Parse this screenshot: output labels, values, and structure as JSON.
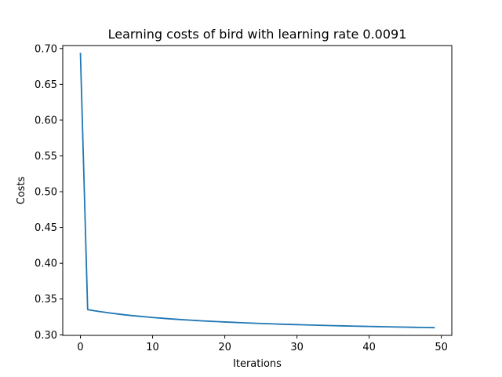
{
  "chart_data": {
    "type": "line",
    "title": "Learning costs of bird with learning rate 0.0091",
    "xlabel": "Iterations",
    "ylabel": "Costs",
    "xlim": [
      -2.45,
      51.45
    ],
    "ylim": [
      0.2992,
      0.7042
    ],
    "x_ticks": [
      0,
      10,
      20,
      30,
      40,
      50
    ],
    "x_tick_labels": [
      "0",
      "10",
      "20",
      "30",
      "40",
      "50"
    ],
    "y_ticks": [
      0.3,
      0.35,
      0.4,
      0.45,
      0.5,
      0.55,
      0.6,
      0.65,
      0.7
    ],
    "y_tick_labels": [
      "0.30",
      "0.35",
      "0.40",
      "0.45",
      "0.50",
      "0.55",
      "0.60",
      "0.65",
      "0.70"
    ],
    "grid": false,
    "colors": {
      "line": "#1f77b4"
    },
    "series": [
      {
        "x": [
          0,
          1,
          2,
          3,
          4,
          5,
          6,
          7,
          8,
          9,
          10,
          11,
          12,
          13,
          14,
          15,
          16,
          17,
          18,
          19,
          20,
          21,
          22,
          23,
          24,
          25,
          26,
          27,
          28,
          29,
          30,
          31,
          32,
          33,
          34,
          35,
          36,
          37,
          38,
          39,
          40,
          41,
          42,
          43,
          44,
          45,
          46,
          47,
          48,
          49
        ],
        "values": [
          0.6931,
          0.3352,
          0.3335,
          0.332,
          0.3306,
          0.3293,
          0.3281,
          0.327,
          0.326,
          0.3251,
          0.3242,
          0.3234,
          0.3226,
          0.3219,
          0.3212,
          0.3206,
          0.32,
          0.3194,
          0.3189,
          0.3184,
          0.3179,
          0.3175,
          0.317,
          0.3166,
          0.3162,
          0.3158,
          0.3155,
          0.3151,
          0.3148,
          0.3145,
          0.3142,
          0.3139,
          0.3136,
          0.3133,
          0.3131,
          0.3128,
          0.3126,
          0.3123,
          0.3121,
          0.3119,
          0.3117,
          0.3115,
          0.3113,
          0.3111,
          0.3109,
          0.3107,
          0.3105,
          0.3103,
          0.3102,
          0.31
        ]
      }
    ]
  }
}
